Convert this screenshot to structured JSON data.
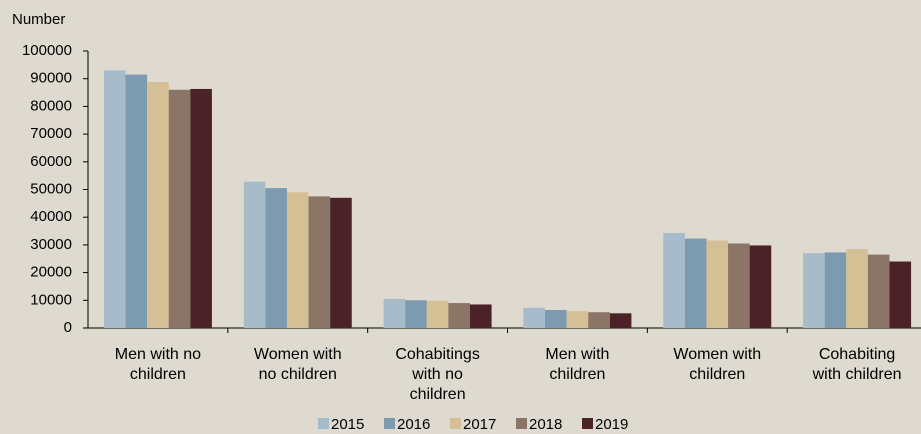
{
  "chart_data": {
    "type": "bar",
    "y_label": "Number",
    "categories": [
      "Men with no children",
      "Women with no children",
      "Cohabitings with no children",
      "Men with children",
      "Women with children",
      "Cohabiting with children"
    ],
    "series": [
      {
        "name": "2015",
        "color": "#a6bccb",
        "values": [
          93000,
          52800,
          10500,
          7300,
          34300,
          27000
        ]
      },
      {
        "name": "2016",
        "color": "#7d9bb0",
        "values": [
          91500,
          50500,
          10000,
          6500,
          32300,
          27300
        ]
      },
      {
        "name": "2017",
        "color": "#d5c095",
        "values": [
          88800,
          49000,
          9800,
          6100,
          31600,
          28500
        ]
      },
      {
        "name": "2018",
        "color": "#8b7566",
        "values": [
          86000,
          47500,
          9000,
          5700,
          30500,
          26500
        ]
      },
      {
        "name": "2019",
        "color": "#4a2227",
        "values": [
          86300,
          47000,
          8500,
          5300,
          29800,
          24000
        ]
      }
    ],
    "ylim": [
      0,
      100000
    ],
    "yticks": [
      0,
      10000,
      20000,
      30000,
      40000,
      50000,
      60000,
      70000,
      80000,
      90000,
      100000
    ],
    "legend": "bottom"
  }
}
